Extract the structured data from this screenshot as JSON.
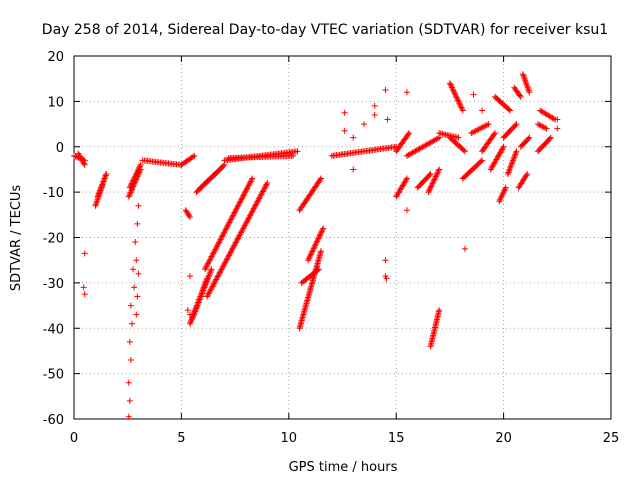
{
  "chart_data": {
    "type": "scatter",
    "title": "Day 258 of 2014, Sidereal Day-to-day VTEC variation (SDTVAR) for receiver ksu1",
    "xlabel": "GPS time / hours",
    "ylabel": "SDTVAR / TECUs",
    "xlim": [
      0,
      25
    ],
    "ylim": [
      -60,
      20
    ],
    "xticks": [
      "0",
      "5",
      "10",
      "15",
      "20",
      "25"
    ],
    "yticks": [
      "20",
      "10",
      "0",
      "-10",
      "-20",
      "-30",
      "-40",
      "-50",
      "-60"
    ],
    "xtick_values": [
      0,
      5,
      10,
      15,
      20,
      25
    ],
    "ytick_values": [
      20,
      10,
      0,
      -10,
      -20,
      -30,
      -40,
      -50,
      -60
    ],
    "grid": true,
    "marker": "plus",
    "color": "#ff0000",
    "segments": [
      {
        "x": [
          0.0,
          0.5
        ],
        "y": [
          -2,
          -3
        ]
      },
      {
        "x": [
          0.2,
          0.5
        ],
        "y": [
          -1.5,
          -4
        ]
      },
      {
        "x": [
          1.0,
          1.5
        ],
        "y": [
          -13,
          -6
        ]
      },
      {
        "x": [
          1.1,
          1.5
        ],
        "y": [
          -11,
          -6
        ]
      },
      {
        "x": [
          2.55,
          3.1
        ],
        "y": [
          -11,
          -5
        ]
      },
      {
        "x": [
          2.6,
          3.1
        ],
        "y": [
          -9,
          -4
        ]
      },
      {
        "x": [
          3.2,
          5.0
        ],
        "y": [
          -3,
          -4
        ]
      },
      {
        "x": [
          5.0,
          5.6
        ],
        "y": [
          -4,
          -2
        ]
      },
      {
        "x": [
          5.2,
          5.4
        ],
        "y": [
          -14,
          -15.5
        ]
      },
      {
        "x": [
          5.4,
          6.2
        ],
        "y": [
          -39,
          -29
        ]
      },
      {
        "x": [
          5.5,
          6.4
        ],
        "y": [
          -38,
          -27
        ]
      },
      {
        "x": [
          5.7,
          6.8
        ],
        "y": [
          -10,
          -5
        ]
      },
      {
        "x": [
          5.9,
          7.0
        ],
        "y": [
          -9,
          -4
        ]
      },
      {
        "x": [
          6.1,
          8.3
        ],
        "y": [
          -27,
          -7
        ]
      },
      {
        "x": [
          6.2,
          9.0
        ],
        "y": [
          -33,
          -8
        ]
      },
      {
        "x": [
          7.0,
          10.4
        ],
        "y": [
          -3,
          -1
        ]
      },
      {
        "x": [
          7.2,
          10.2
        ],
        "y": [
          -2.5,
          -2
        ]
      },
      {
        "x": [
          10.5,
          11.5
        ],
        "y": [
          -40,
          -23
        ]
      },
      {
        "x": [
          10.6,
          11.4
        ],
        "y": [
          -30,
          -27
        ]
      },
      {
        "x": [
          10.5,
          11.5
        ],
        "y": [
          -14,
          -7
        ]
      },
      {
        "x": [
          10.9,
          11.6
        ],
        "y": [
          -25,
          -18
        ]
      },
      {
        "x": [
          12.0,
          15.0
        ],
        "y": [
          -2,
          0
        ]
      },
      {
        "x": [
          15.0,
          15.5
        ],
        "y": [
          -11,
          -7
        ]
      },
      {
        "x": [
          15.0,
          15.6
        ],
        "y": [
          -1,
          3
        ]
      },
      {
        "x": [
          15.5,
          17.0
        ],
        "y": [
          -2,
          2
        ]
      },
      {
        "x": [
          16.0,
          16.6
        ],
        "y": [
          -9,
          -6
        ]
      },
      {
        "x": [
          16.5,
          17.0
        ],
        "y": [
          -10,
          -5
        ]
      },
      {
        "x": [
          16.6,
          17.0
        ],
        "y": [
          -44,
          -36
        ]
      },
      {
        "x": [
          17.0,
          17.9
        ],
        "y": [
          3,
          2
        ]
      },
      {
        "x": [
          17.5,
          18.1
        ],
        "y": [
          14,
          8
        ]
      },
      {
        "x": [
          17.5,
          18.2
        ],
        "y": [
          2,
          -1
        ]
      },
      {
        "x": [
          18.1,
          19.0
        ],
        "y": [
          -7,
          -3
        ]
      },
      {
        "x": [
          18.5,
          19.3
        ],
        "y": [
          3,
          5
        ]
      },
      {
        "x": [
          19.0,
          19.6
        ],
        "y": [
          -1,
          3
        ]
      },
      {
        "x": [
          19.4,
          20.0
        ],
        "y": [
          -5,
          0
        ]
      },
      {
        "x": [
          19.6,
          20.3
        ],
        "y": [
          11,
          8
        ]
      },
      {
        "x": [
          19.8,
          20.1
        ],
        "y": [
          -12,
          -9
        ]
      },
      {
        "x": [
          20.0,
          20.6
        ],
        "y": [
          2,
          5
        ]
      },
      {
        "x": [
          20.2,
          20.6
        ],
        "y": [
          -6,
          -1
        ]
      },
      {
        "x": [
          20.5,
          20.8
        ],
        "y": [
          13,
          11
        ]
      },
      {
        "x": [
          20.7,
          21.1
        ],
        "y": [
          -9,
          -6
        ]
      },
      {
        "x": [
          20.8,
          21.2
        ],
        "y": [
          0,
          2
        ]
      },
      {
        "x": [
          20.9,
          21.2
        ],
        "y": [
          16,
          12
        ]
      },
      {
        "x": [
          21.6,
          22.0
        ],
        "y": [
          5,
          4
        ]
      },
      {
        "x": [
          21.6,
          22.2
        ],
        "y": [
          -1,
          2
        ]
      },
      {
        "x": [
          21.7,
          22.4
        ],
        "y": [
          8,
          6
        ]
      }
    ],
    "points": [
      {
        "x": 0.5,
        "y": -23.5
      },
      {
        "x": 0.45,
        "y": -31
      },
      {
        "x": 0.5,
        "y": -32.5
      },
      {
        "x": 2.55,
        "y": -59.5
      },
      {
        "x": 2.6,
        "y": -56
      },
      {
        "x": 2.55,
        "y": -52
      },
      {
        "x": 2.65,
        "y": -47
      },
      {
        "x": 2.6,
        "y": -43
      },
      {
        "x": 2.7,
        "y": -39
      },
      {
        "x": 2.65,
        "y": -35
      },
      {
        "x": 2.8,
        "y": -31
      },
      {
        "x": 2.75,
        "y": -27
      },
      {
        "x": 2.9,
        "y": -25
      },
      {
        "x": 2.85,
        "y": -21
      },
      {
        "x": 2.95,
        "y": -17
      },
      {
        "x": 3.0,
        "y": -13
      },
      {
        "x": 3.0,
        "y": -28
      },
      {
        "x": 2.95,
        "y": -33
      },
      {
        "x": 2.9,
        "y": -37
      },
      {
        "x": 5.4,
        "y": -28.5
      },
      {
        "x": 5.3,
        "y": -36
      },
      {
        "x": 5.4,
        "y": -37
      },
      {
        "x": 12.6,
        "y": 7.5
      },
      {
        "x": 12.6,
        "y": 3.5
      },
      {
        "x": 13.0,
        "y": -5
      },
      {
        "x": 13.0,
        "y": 2
      },
      {
        "x": 13.5,
        "y": 5
      },
      {
        "x": 14.0,
        "y": 9
      },
      {
        "x": 14.0,
        "y": 7
      },
      {
        "x": 14.5,
        "y": 12.5
      },
      {
        "x": 14.6,
        "y": 6
      },
      {
        "x": 14.5,
        "y": -25
      },
      {
        "x": 14.5,
        "y": -28.5
      },
      {
        "x": 14.55,
        "y": -29
      },
      {
        "x": 15.5,
        "y": 12
      },
      {
        "x": 15.5,
        "y": -14
      },
      {
        "x": 18.2,
        "y": -22.5
      },
      {
        "x": 18.6,
        "y": 11.5
      },
      {
        "x": 19.0,
        "y": 8
      },
      {
        "x": 22.5,
        "y": 6
      },
      {
        "x": 22.5,
        "y": 4
      }
    ]
  }
}
